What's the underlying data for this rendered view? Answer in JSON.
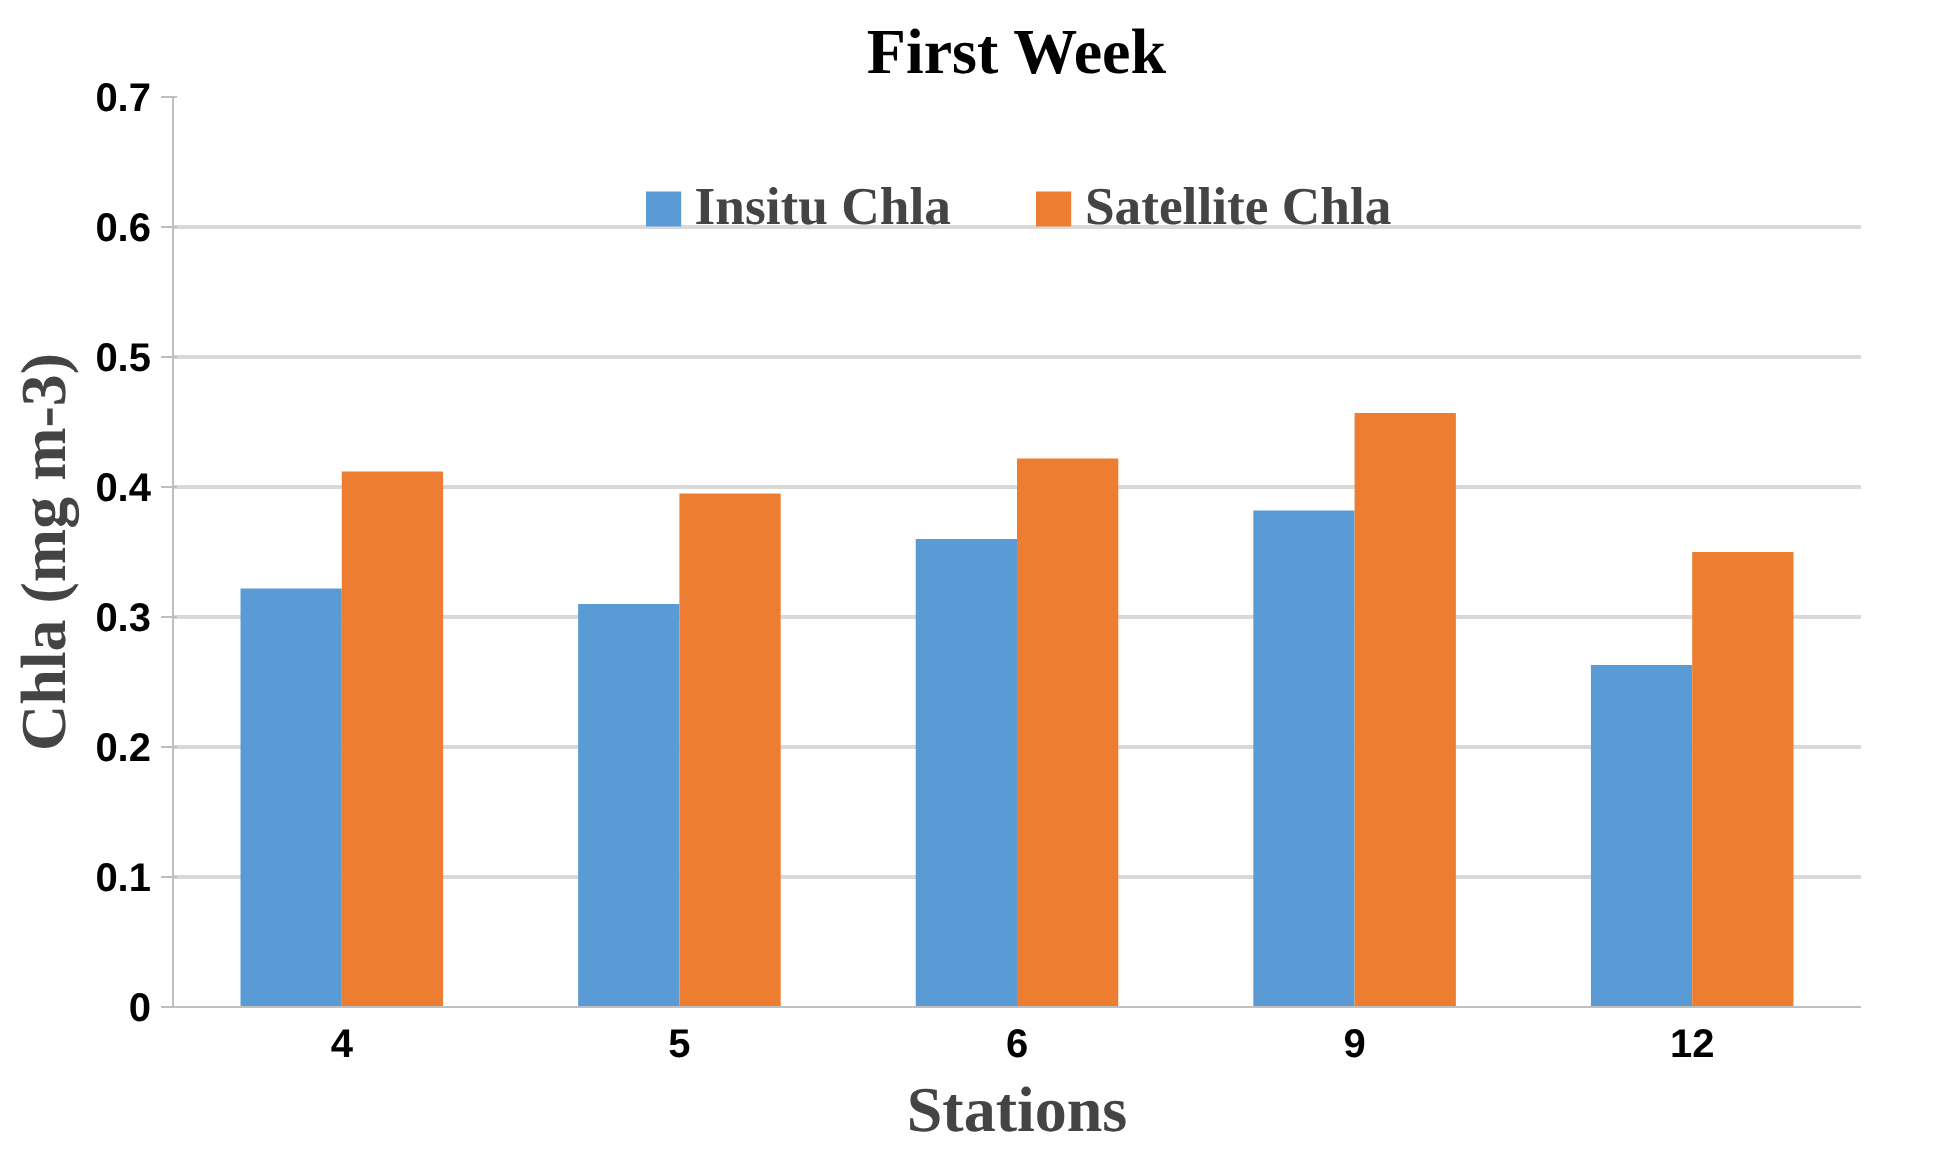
{
  "chart_data": {
    "type": "bar",
    "title": "First Week",
    "xlabel": "Stations",
    "ylabel": "Chla (mg m-3)",
    "categories": [
      "4",
      "5",
      "6",
      "9",
      "12"
    ],
    "series": [
      {
        "name": "Insitu Chla",
        "color": "#5b9bd5",
        "values": [
          0.322,
          0.31,
          0.36,
          0.382,
          0.263
        ]
      },
      {
        "name": "Satellite Chla",
        "color": "#ed7d31",
        "values": [
          0.412,
          0.395,
          0.422,
          0.457,
          0.35
        ]
      }
    ],
    "ylim": [
      0,
      0.7
    ],
    "yticks": [
      0,
      0.1,
      0.2,
      0.3,
      0.4,
      0.5,
      0.6,
      0.7
    ],
    "grid": "y",
    "legend": "top"
  }
}
